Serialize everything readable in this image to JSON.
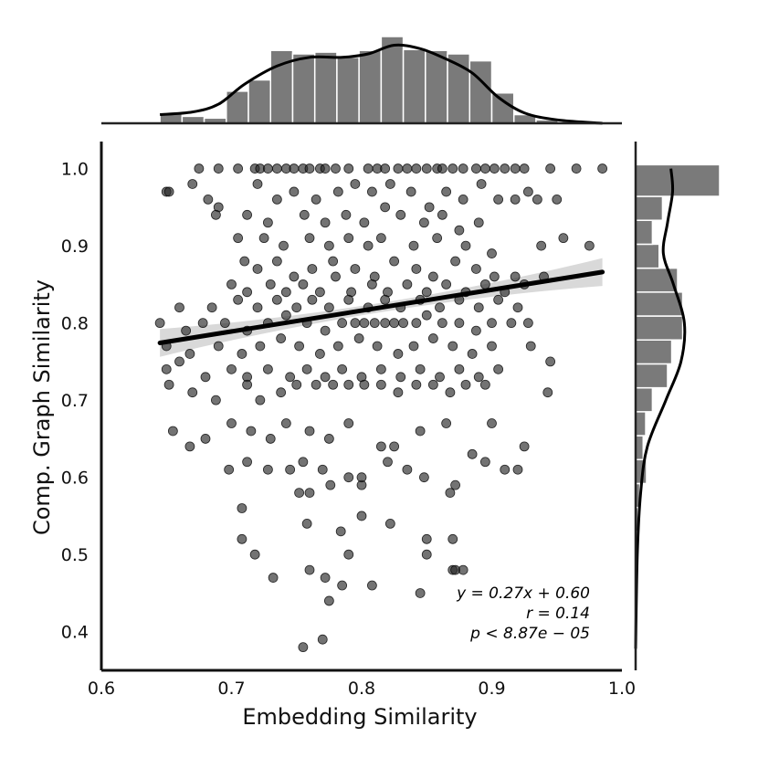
{
  "chart_data": {
    "type": "scatter",
    "title": "",
    "xlabel": "Embedding Similarity",
    "ylabel": "Comp. Graph Similarity",
    "xlim": [
      0.6,
      1.0
    ],
    "ylim": [
      0.35,
      1.035
    ],
    "xticks": [
      "0.6",
      "0.7",
      "0.8",
      "0.9",
      "1.0"
    ],
    "yticks": [
      "0.4",
      "0.5",
      "0.6",
      "0.7",
      "0.8",
      "0.9",
      "1.0"
    ],
    "grid": false,
    "regression": {
      "slope": 0.27,
      "intercept": 0.6,
      "x_range": [
        0.645,
        0.985
      ],
      "ci_halfwidth_ends": 0.018,
      "ci_halfwidth_mid": 0.006
    },
    "annotation_lines": [
      "y = 0.27x + 0.60",
      "r = 0.14",
      "p < 8.87e − 05"
    ],
    "top_hist": {
      "bin_edges": [
        0.645,
        0.662,
        0.679,
        0.696,
        0.713,
        0.73,
        0.747,
        0.764,
        0.781,
        0.798,
        0.815,
        0.832,
        0.849,
        0.866,
        0.883,
        0.9,
        0.917,
        0.934,
        0.951,
        0.968,
        0.985
      ],
      "heights": [
        0.12,
        0.08,
        0.06,
        0.37,
        0.5,
        0.84,
        0.8,
        0.82,
        0.76,
        0.84,
        1.0,
        0.85,
        0.84,
        0.8,
        0.72,
        0.35,
        0.1,
        0.04,
        0.02,
        0.01
      ],
      "kde": [
        [
          0.645,
          0.1
        ],
        [
          0.67,
          0.13
        ],
        [
          0.69,
          0.22
        ],
        [
          0.71,
          0.45
        ],
        [
          0.735,
          0.66
        ],
        [
          0.76,
          0.76
        ],
        [
          0.785,
          0.76
        ],
        [
          0.805,
          0.8
        ],
        [
          0.825,
          0.9
        ],
        [
          0.845,
          0.86
        ],
        [
          0.865,
          0.74
        ],
        [
          0.885,
          0.58
        ],
        [
          0.905,
          0.3
        ],
        [
          0.925,
          0.12
        ],
        [
          0.95,
          0.04
        ],
        [
          0.985,
          0.0
        ]
      ]
    },
    "right_hist": {
      "bin_edges": [
        0.375,
        0.406,
        0.437,
        0.468,
        0.499,
        0.53,
        0.561,
        0.592,
        0.623,
        0.654,
        0.685,
        0.716,
        0.747,
        0.778,
        0.809,
        0.84,
        0.871,
        0.902,
        0.933,
        0.964,
        1.005
      ],
      "heights": [
        0.0,
        0.01,
        0.01,
        0.02,
        0.01,
        0.03,
        0.05,
        0.13,
        0.09,
        0.12,
        0.2,
        0.38,
        0.43,
        0.56,
        0.56,
        0.5,
        0.28,
        0.2,
        0.32,
        1.0
      ],
      "kde": [
        [
          0.378,
          0.0
        ],
        [
          0.5,
          0.02
        ],
        [
          0.58,
          0.06
        ],
        [
          0.64,
          0.14
        ],
        [
          0.7,
          0.36
        ],
        [
          0.75,
          0.54
        ],
        [
          0.8,
          0.58
        ],
        [
          0.85,
          0.45
        ],
        [
          0.89,
          0.33
        ],
        [
          0.93,
          0.38
        ],
        [
          0.97,
          0.44
        ],
        [
          1.0,
          0.42
        ]
      ]
    },
    "points": [
      [
        0.675,
        1.0
      ],
      [
        0.69,
        1.0
      ],
      [
        0.705,
        1.0
      ],
      [
        0.718,
        1.0
      ],
      [
        0.722,
        1.0
      ],
      [
        0.728,
        1.0
      ],
      [
        0.735,
        1.0
      ],
      [
        0.742,
        1.0
      ],
      [
        0.748,
        1.0
      ],
      [
        0.755,
        1.0
      ],
      [
        0.76,
        1.0
      ],
      [
        0.768,
        1.0
      ],
      [
        0.772,
        1.0
      ],
      [
        0.78,
        1.0
      ],
      [
        0.79,
        1.0
      ],
      [
        0.805,
        1.0
      ],
      [
        0.812,
        1.0
      ],
      [
        0.818,
        1.0
      ],
      [
        0.828,
        1.0
      ],
      [
        0.835,
        1.0
      ],
      [
        0.842,
        1.0
      ],
      [
        0.85,
        1.0
      ],
      [
        0.858,
        1.0
      ],
      [
        0.862,
        1.0
      ],
      [
        0.87,
        1.0
      ],
      [
        0.878,
        1.0
      ],
      [
        0.888,
        1.0
      ],
      [
        0.895,
        1.0
      ],
      [
        0.902,
        1.0
      ],
      [
        0.91,
        1.0
      ],
      [
        0.918,
        1.0
      ],
      [
        0.925,
        1.0
      ],
      [
        0.945,
        1.0
      ],
      [
        0.965,
        1.0
      ],
      [
        0.985,
        1.0
      ],
      [
        0.65,
        0.97
      ],
      [
        0.652,
        0.97
      ],
      [
        0.67,
        0.98
      ],
      [
        0.682,
        0.96
      ],
      [
        0.69,
        0.95
      ],
      [
        0.72,
        0.98
      ],
      [
        0.735,
        0.96
      ],
      [
        0.748,
        0.97
      ],
      [
        0.765,
        0.96
      ],
      [
        0.782,
        0.97
      ],
      [
        0.795,
        0.98
      ],
      [
        0.808,
        0.97
      ],
      [
        0.822,
        0.98
      ],
      [
        0.838,
        0.97
      ],
      [
        0.852,
        0.95
      ],
      [
        0.865,
        0.97
      ],
      [
        0.878,
        0.96
      ],
      [
        0.892,
        0.98
      ],
      [
        0.905,
        0.96
      ],
      [
        0.918,
        0.96
      ],
      [
        0.928,
        0.97
      ],
      [
        0.935,
        0.96
      ],
      [
        0.95,
        0.96
      ],
      [
        0.688,
        0.94
      ],
      [
        0.712,
        0.94
      ],
      [
        0.728,
        0.93
      ],
      [
        0.756,
        0.94
      ],
      [
        0.772,
        0.93
      ],
      [
        0.788,
        0.94
      ],
      [
        0.802,
        0.93
      ],
      [
        0.818,
        0.95
      ],
      [
        0.83,
        0.94
      ],
      [
        0.848,
        0.93
      ],
      [
        0.862,
        0.94
      ],
      [
        0.875,
        0.92
      ],
      [
        0.89,
        0.93
      ],
      [
        0.705,
        0.91
      ],
      [
        0.725,
        0.91
      ],
      [
        0.74,
        0.9
      ],
      [
        0.76,
        0.91
      ],
      [
        0.775,
        0.9
      ],
      [
        0.79,
        0.91
      ],
      [
        0.805,
        0.9
      ],
      [
        0.815,
        0.91
      ],
      [
        0.84,
        0.9
      ],
      [
        0.858,
        0.91
      ],
      [
        0.88,
        0.9
      ],
      [
        0.9,
        0.89
      ],
      [
        0.938,
        0.9
      ],
      [
        0.955,
        0.91
      ],
      [
        0.975,
        0.9
      ],
      [
        0.71,
        0.88
      ],
      [
        0.72,
        0.87
      ],
      [
        0.735,
        0.88
      ],
      [
        0.748,
        0.86
      ],
      [
        0.762,
        0.87
      ],
      [
        0.778,
        0.88
      ],
      [
        0.795,
        0.87
      ],
      [
        0.81,
        0.86
      ],
      [
        0.825,
        0.88
      ],
      [
        0.842,
        0.87
      ],
      [
        0.855,
        0.86
      ],
      [
        0.872,
        0.88
      ],
      [
        0.888,
        0.87
      ],
      [
        0.902,
        0.86
      ],
      [
        0.918,
        0.86
      ],
      [
        0.7,
        0.85
      ],
      [
        0.712,
        0.84
      ],
      [
        0.73,
        0.85
      ],
      [
        0.742,
        0.84
      ],
      [
        0.755,
        0.85
      ],
      [
        0.768,
        0.84
      ],
      [
        0.78,
        0.86
      ],
      [
        0.792,
        0.84
      ],
      [
        0.808,
        0.85
      ],
      [
        0.82,
        0.84
      ],
      [
        0.835,
        0.85
      ],
      [
        0.85,
        0.84
      ],
      [
        0.865,
        0.85
      ],
      [
        0.88,
        0.84
      ],
      [
        0.895,
        0.85
      ],
      [
        0.91,
        0.84
      ],
      [
        0.925,
        0.85
      ],
      [
        0.94,
        0.86
      ],
      [
        0.66,
        0.82
      ],
      [
        0.685,
        0.82
      ],
      [
        0.705,
        0.83
      ],
      [
        0.72,
        0.82
      ],
      [
        0.735,
        0.83
      ],
      [
        0.75,
        0.82
      ],
      [
        0.762,
        0.83
      ],
      [
        0.775,
        0.82
      ],
      [
        0.79,
        0.83
      ],
      [
        0.805,
        0.82
      ],
      [
        0.818,
        0.83
      ],
      [
        0.83,
        0.82
      ],
      [
        0.845,
        0.83
      ],
      [
        0.86,
        0.82
      ],
      [
        0.875,
        0.83
      ],
      [
        0.89,
        0.82
      ],
      [
        0.905,
        0.83
      ],
      [
        0.92,
        0.82
      ],
      [
        0.645,
        0.8
      ],
      [
        0.665,
        0.79
      ],
      [
        0.678,
        0.8
      ],
      [
        0.695,
        0.8
      ],
      [
        0.712,
        0.79
      ],
      [
        0.728,
        0.8
      ],
      [
        0.742,
        0.81
      ],
      [
        0.758,
        0.8
      ],
      [
        0.772,
        0.79
      ],
      [
        0.785,
        0.8
      ],
      [
        0.795,
        0.8
      ],
      [
        0.802,
        0.8
      ],
      [
        0.81,
        0.8
      ],
      [
        0.818,
        0.8
      ],
      [
        0.825,
        0.8
      ],
      [
        0.832,
        0.8
      ],
      [
        0.842,
        0.8
      ],
      [
        0.85,
        0.81
      ],
      [
        0.862,
        0.8
      ],
      [
        0.875,
        0.8
      ],
      [
        0.888,
        0.79
      ],
      [
        0.9,
        0.8
      ],
      [
        0.915,
        0.8
      ],
      [
        0.928,
        0.8
      ],
      [
        0.65,
        0.77
      ],
      [
        0.668,
        0.76
      ],
      [
        0.69,
        0.77
      ],
      [
        0.708,
        0.76
      ],
      [
        0.722,
        0.77
      ],
      [
        0.738,
        0.78
      ],
      [
        0.752,
        0.77
      ],
      [
        0.768,
        0.76
      ],
      [
        0.782,
        0.77
      ],
      [
        0.798,
        0.78
      ],
      [
        0.812,
        0.77
      ],
      [
        0.828,
        0.76
      ],
      [
        0.84,
        0.77
      ],
      [
        0.855,
        0.78
      ],
      [
        0.87,
        0.77
      ],
      [
        0.885,
        0.76
      ],
      [
        0.9,
        0.77
      ],
      [
        0.93,
        0.77
      ],
      [
        0.945,
        0.75
      ],
      [
        0.65,
        0.74
      ],
      [
        0.66,
        0.75
      ],
      [
        0.68,
        0.73
      ],
      [
        0.7,
        0.74
      ],
      [
        0.712,
        0.73
      ],
      [
        0.728,
        0.74
      ],
      [
        0.745,
        0.73
      ],
      [
        0.758,
        0.74
      ],
      [
        0.772,
        0.73
      ],
      [
        0.785,
        0.74
      ],
      [
        0.8,
        0.73
      ],
      [
        0.815,
        0.74
      ],
      [
        0.83,
        0.73
      ],
      [
        0.845,
        0.74
      ],
      [
        0.86,
        0.73
      ],
      [
        0.875,
        0.74
      ],
      [
        0.89,
        0.73
      ],
      [
        0.905,
        0.74
      ],
      [
        0.652,
        0.72
      ],
      [
        0.67,
        0.71
      ],
      [
        0.688,
        0.7
      ],
      [
        0.712,
        0.72
      ],
      [
        0.722,
        0.7
      ],
      [
        0.738,
        0.71
      ],
      [
        0.75,
        0.72
      ],
      [
        0.765,
        0.72
      ],
      [
        0.778,
        0.72
      ],
      [
        0.79,
        0.72
      ],
      [
        0.802,
        0.72
      ],
      [
        0.815,
        0.72
      ],
      [
        0.828,
        0.71
      ],
      [
        0.842,
        0.72
      ],
      [
        0.855,
        0.72
      ],
      [
        0.868,
        0.71
      ],
      [
        0.88,
        0.72
      ],
      [
        0.895,
        0.72
      ],
      [
        0.943,
        0.71
      ],
      [
        0.655,
        0.66
      ],
      [
        0.668,
        0.64
      ],
      [
        0.68,
        0.65
      ],
      [
        0.7,
        0.67
      ],
      [
        0.715,
        0.66
      ],
      [
        0.73,
        0.65
      ],
      [
        0.742,
        0.67
      ],
      [
        0.76,
        0.66
      ],
      [
        0.775,
        0.65
      ],
      [
        0.79,
        0.67
      ],
      [
        0.815,
        0.64
      ],
      [
        0.825,
        0.64
      ],
      [
        0.845,
        0.66
      ],
      [
        0.865,
        0.67
      ],
      [
        0.885,
        0.63
      ],
      [
        0.9,
        0.67
      ],
      [
        0.925,
        0.64
      ],
      [
        0.698,
        0.61
      ],
      [
        0.712,
        0.62
      ],
      [
        0.728,
        0.61
      ],
      [
        0.745,
        0.61
      ],
      [
        0.755,
        0.62
      ],
      [
        0.77,
        0.61
      ],
      [
        0.79,
        0.6
      ],
      [
        0.8,
        0.59
      ],
      [
        0.82,
        0.62
      ],
      [
        0.835,
        0.61
      ],
      [
        0.848,
        0.6
      ],
      [
        0.872,
        0.59
      ],
      [
        0.895,
        0.62
      ],
      [
        0.91,
        0.61
      ],
      [
        0.92,
        0.61
      ],
      [
        0.752,
        0.58
      ],
      [
        0.76,
        0.58
      ],
      [
        0.776,
        0.59
      ],
      [
        0.8,
        0.6
      ],
      [
        0.868,
        0.58
      ],
      [
        0.708,
        0.56
      ],
      [
        0.758,
        0.54
      ],
      [
        0.8,
        0.55
      ],
      [
        0.822,
        0.54
      ],
      [
        0.708,
        0.52
      ],
      [
        0.784,
        0.53
      ],
      [
        0.85,
        0.52
      ],
      [
        0.87,
        0.52
      ],
      [
        0.718,
        0.5
      ],
      [
        0.79,
        0.5
      ],
      [
        0.85,
        0.5
      ],
      [
        0.76,
        0.48
      ],
      [
        0.87,
        0.48
      ],
      [
        0.872,
        0.48
      ],
      [
        0.878,
        0.48
      ],
      [
        0.732,
        0.47
      ],
      [
        0.772,
        0.47
      ],
      [
        0.785,
        0.46
      ],
      [
        0.808,
        0.46
      ],
      [
        0.845,
        0.45
      ],
      [
        0.775,
        0.44
      ],
      [
        0.77,
        0.39
      ],
      [
        0.755,
        0.38
      ]
    ]
  }
}
